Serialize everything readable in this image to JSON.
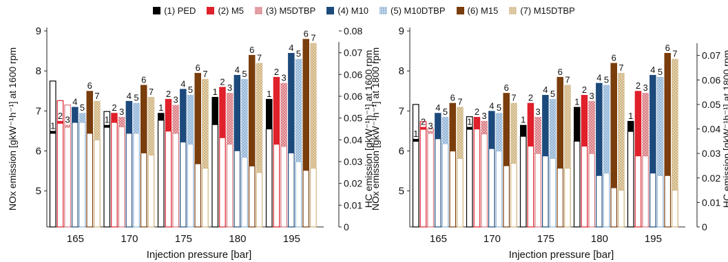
{
  "legend": [
    {
      "label": "(1) PED",
      "color": "#000000",
      "pattern": "solid"
    },
    {
      "label": "(2) M5",
      "color": "#e0202b",
      "pattern": "solid"
    },
    {
      "label": "(3) M5DTBP",
      "color": "#d9787f",
      "pattern": "dots"
    },
    {
      "label": "(4) M10",
      "color": "#1d4a7c",
      "pattern": "solid"
    },
    {
      "label": "(5) M10DTBP",
      "color": "#8fb3d6",
      "pattern": "dots"
    },
    {
      "label": "(6) M15",
      "color": "#7a3d0c",
      "pattern": "solid"
    },
    {
      "label": "(7) M15DTBP",
      "color": "#cfb27c",
      "pattern": "dots"
    }
  ],
  "bar_labels": [
    "1",
    "2",
    "3",
    "4",
    "5",
    "6",
    "7"
  ],
  "chart_data": [
    {
      "type": "bar",
      "categories": [
        "165",
        "170",
        "175",
        "180",
        "195"
      ],
      "xlabel": "Injection pressure [bar]",
      "ylabel_left": "NOx emission [gkW⁻¹h⁻¹] at 1600 rpm",
      "ylabel_right": "HC emission [gkW⁻¹h⁻¹] at 1600 rpm",
      "ylim_left": [
        4.1,
        9
      ],
      "left_ticks": [
        "5",
        "6",
        "7",
        "8",
        "9"
      ],
      "ylim_right": [
        0,
        0.09
      ],
      "right_ticks": [
        "0",
        "0.01",
        "0.02",
        "0.03",
        "0.04",
        "0.05",
        "0.06",
        "0.06",
        "0.07",
        "0.08"
      ],
      "series": [
        {
          "name": "(1) PED",
          "nox": [
            6.5,
            6.65,
            6.95,
            7.35,
            7.3
          ],
          "hc": [
            0.067,
            0.053,
            0.049,
            0.047,
            0.045
          ]
        },
        {
          "name": "(2) M5",
          "nox": [
            6.75,
            6.95,
            7.3,
            7.6,
            7.85
          ],
          "hc": [
            0.058,
            0.048,
            0.044,
            0.041,
            0.038
          ]
        },
        {
          "name": "(3) M5DTBP",
          "nox": [
            6.65,
            6.85,
            7.15,
            7.45,
            7.7
          ],
          "hc": [
            0.056,
            0.046,
            0.043,
            0.038,
            0.037
          ]
        },
        {
          "name": "(4) M10",
          "nox": [
            7.1,
            7.25,
            7.55,
            7.9,
            8.45
          ],
          "hc": [
            0.048,
            0.043,
            0.039,
            0.035,
            0.034
          ]
        },
        {
          "name": "(5) M10DTBP",
          "nox": [
            6.95,
            7.2,
            7.4,
            7.8,
            8.3
          ],
          "hc": [
            0.048,
            0.043,
            0.038,
            0.032,
            0.03
          ]
        },
        {
          "name": "(6) M15",
          "nox": [
            7.5,
            7.65,
            7.95,
            8.4,
            8.8
          ],
          "hc": [
            0.043,
            0.034,
            0.029,
            0.028,
            0.026
          ]
        },
        {
          "name": "(7) M15DTBP",
          "nox": [
            7.25,
            7.35,
            7.8,
            8.2,
            8.7
          ],
          "hc": [
            0.04,
            0.033,
            0.027,
            0.025,
            0.027
          ]
        }
      ]
    },
    {
      "type": "bar",
      "categories": [
        "165",
        "170",
        "175",
        "180",
        "195"
      ],
      "xlabel": "Injection pressure [bar]",
      "ylabel_left": "NOx emission [gkW⁻¹h⁻¹] at 1800 rpm",
      "ylabel_right": "HC emission [gkW⁻¹h⁻¹] at 1800 rpm",
      "ylim_left": [
        4.1,
        9
      ],
      "left_ticks": [
        "5",
        "6",
        "7",
        "8",
        "9"
      ],
      "ylim_right": [
        0,
        0.08
      ],
      "right_ticks": [
        "0",
        "0.01",
        "0.02",
        "0.03",
        "0.04",
        "0.05",
        "0.06",
        "0.07"
      ],
      "series": [
        {
          "name": "(1) PED",
          "nox": [
            6.3,
            6.6,
            6.65,
            7.1,
            6.75
          ],
          "hc": [
            0.05,
            0.045,
            0.037,
            0.035,
            0.039
          ]
        },
        {
          "name": "(2) M5",
          "nox": [
            6.6,
            6.85,
            7.2,
            7.4,
            7.5
          ],
          "hc": [
            0.043,
            0.04,
            0.033,
            0.033,
            0.029
          ]
        },
        {
          "name": "(3) M5DTBP",
          "nox": [
            6.5,
            6.75,
            6.85,
            7.25,
            7.45
          ],
          "hc": [
            0.04,
            0.038,
            0.03,
            0.03,
            0.029
          ]
        },
        {
          "name": "(4) M10",
          "nox": [
            6.95,
            7.0,
            7.4,
            7.7,
            7.9
          ],
          "hc": [
            0.036,
            0.032,
            0.029,
            0.021,
            0.022
          ]
        },
        {
          "name": "(5) M10DTBP",
          "nox": [
            6.85,
            6.95,
            7.3,
            7.65,
            7.85
          ],
          "hc": [
            0.034,
            0.031,
            0.028,
            0.022,
            0.021
          ]
        },
        {
          "name": "(6) M15",
          "nox": [
            7.2,
            7.45,
            7.85,
            8.2,
            8.45
          ],
          "hc": [
            0.031,
            0.025,
            0.024,
            0.016,
            0.021
          ]
        },
        {
          "name": "(7) M15DTBP",
          "nox": [
            7.1,
            7.2,
            7.65,
            7.95,
            8.3
          ],
          "hc": [
            0.028,
            0.026,
            0.024,
            0.015,
            0.015
          ]
        }
      ]
    }
  ]
}
